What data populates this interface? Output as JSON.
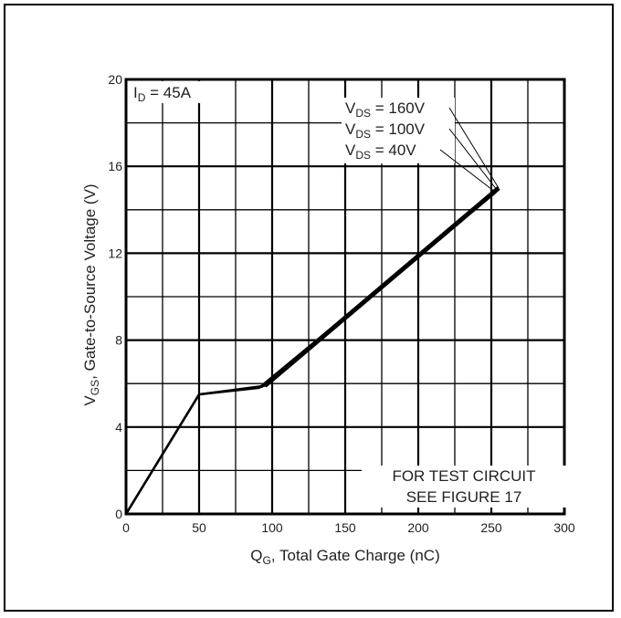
{
  "chart_data": {
    "type": "line",
    "title": "",
    "xlabel_main": "Q",
    "xlabel_sub": "G",
    "xlabel_rest": ", Total Gate Charge (nC)",
    "ylabel_main": "V",
    "ylabel_sub": "GS",
    "ylabel_rest": ", Gate-to-Source Voltage (V)",
    "xlim": [
      0,
      300
    ],
    "ylim": [
      0,
      20
    ],
    "xticks": [
      0,
      50,
      100,
      150,
      200,
      250,
      300
    ],
    "yticks": [
      0,
      4,
      8,
      12,
      16,
      20
    ],
    "grid": true,
    "annotation_id": {
      "main": "I",
      "sub": "D",
      "rest": " = 45A"
    },
    "legend": [
      {
        "main": "V",
        "sub": "DS",
        "rest": " = 160V"
      },
      {
        "main": "V",
        "sub": "DS",
        "rest": " = 100V"
      },
      {
        "main": "V",
        "sub": "DS",
        "rest": " = 40V"
      }
    ],
    "note_line1": "FOR TEST CIRCUIT",
    "note_line2": "SEE FIGURE 17",
    "series": [
      {
        "name": "VDS = 160V",
        "x": [
          0,
          50,
          95,
          255
        ],
        "y": [
          0,
          5.5,
          5.9,
          15
        ]
      },
      {
        "name": "VDS = 100V",
        "x": [
          0,
          50,
          93,
          254
        ],
        "y": [
          0,
          5.5,
          5.85,
          14.9
        ]
      },
      {
        "name": "VDS = 40V",
        "x": [
          0,
          50,
          91,
          253
        ],
        "y": [
          0,
          5.5,
          5.8,
          14.8
        ]
      }
    ]
  }
}
